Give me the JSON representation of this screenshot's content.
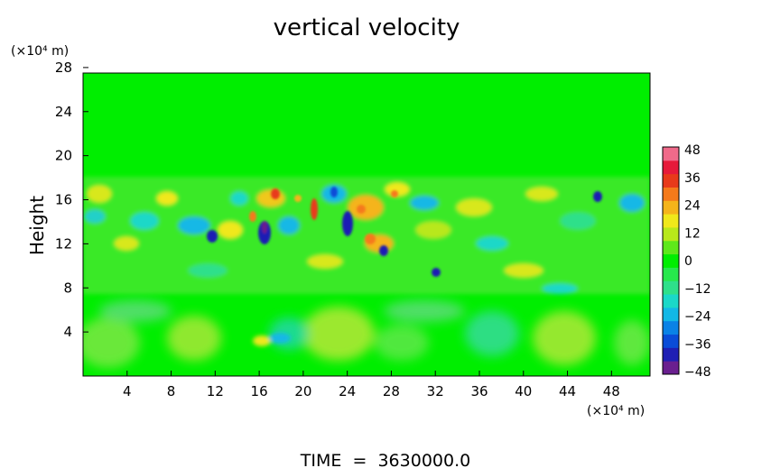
{
  "chart_data": {
    "type": "heatmap",
    "title": "vertical velocity",
    "ylabel": "Height",
    "x_unit_label": "(×10⁴ m)",
    "y_unit_label": "(×10⁴ m)",
    "footer": "TIME  =  3630000.0",
    "x_ticks": [
      4,
      8,
      12,
      16,
      20,
      24,
      28,
      32,
      36,
      40,
      44,
      48
    ],
    "y_ticks": [
      4,
      8,
      12,
      16,
      20,
      24,
      28
    ],
    "xlim": [
      0,
      51.5
    ],
    "ylim": [
      0,
      27.5
    ],
    "colorbar": {
      "ticks": [
        48,
        36,
        24,
        12,
        0,
        -12,
        -24,
        -36,
        -48
      ],
      "range": [
        -48,
        48
      ],
      "colors": [
        "#6a1f8f",
        "#1f1fb4",
        "#0a4cd8",
        "#0a82e6",
        "#12b8e6",
        "#1ad8c8",
        "#2ee08a",
        "#27e84c",
        "#00ee00",
        "#5ee81a",
        "#b8e81a",
        "#f0e81a",
        "#f5b41a",
        "#f57a1a",
        "#e83a1a",
        "#e61a3a",
        "#f06a8a"
      ]
    },
    "features": [
      {
        "x": 16.5,
        "y": 14.5,
        "value": -40
      },
      {
        "x": 24.5,
        "y": 15.0,
        "value": -42
      },
      {
        "x": 12.0,
        "y": 14.0,
        "value": -36
      },
      {
        "x": 27.0,
        "y": 12.5,
        "value": -36
      },
      {
        "x": 31.0,
        "y": 10.0,
        "value": -30
      },
      {
        "x": 46.0,
        "y": 18.0,
        "value": -26
      },
      {
        "x": 20.5,
        "y": 16.5,
        "value": 40
      },
      {
        "x": 17.0,
        "y": 18.0,
        "value": 30
      },
      {
        "x": 26.5,
        "y": 14.0,
        "value": 28
      },
      {
        "x": 23.0,
        "y": 16.5,
        "value": 26
      }
    ]
  }
}
